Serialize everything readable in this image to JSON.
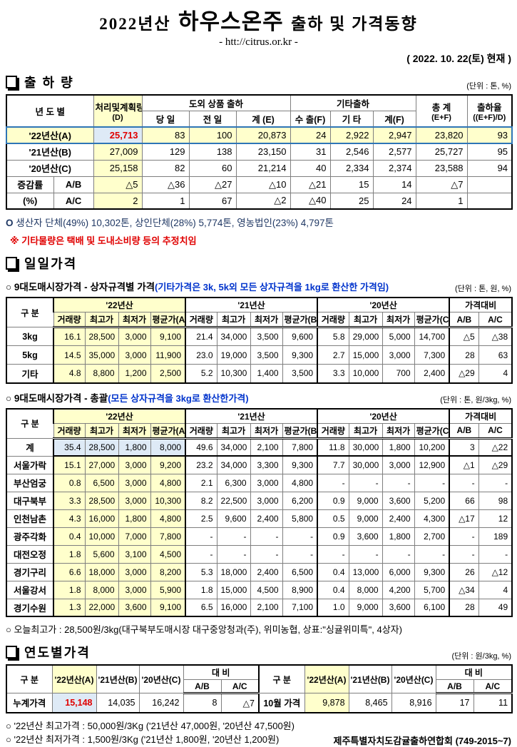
{
  "colors": {
    "accent_yellow": "#FFFFCC",
    "accent_blue": "#DEEAF6",
    "highlight_red": "#E00000",
    "note_blue": "#0033CC",
    "note_navy": "#203864",
    "row_outline_blue": "#2E75B6"
  },
  "header": {
    "title_prefix": "2022년산",
    "title_main": "하우스온주",
    "title_suffix": "출하 및 가격동향",
    "subtitle": "- htt://citrus.or.kr -",
    "as_of": "( 2022. 10. 22(토) 현재 )"
  },
  "shipment": {
    "section_title": "출 하 량",
    "unit": "(단위 : 톤, %)",
    "head": {
      "year": "년 도 별",
      "plan1": "처리및계획량",
      "plan2": "(D)",
      "out_group": "도외 상품 출하",
      "today": "당 일",
      "prev": "전 일",
      "sum_e": "계 (E)",
      "etc_group": "기타출하",
      "export": "수 출(F)",
      "etc": "기 타",
      "sum_f": "계(F)",
      "total1": "총  계",
      "total2": "(E+F)",
      "rate1": "출하율",
      "rate2": "((E+F)/D)"
    },
    "rows": [
      {
        "cls": "yr row-a",
        "cells": [
          {
            "t": "'22년산(A)",
            "cs": 2
          },
          "25,713",
          "83",
          "100",
          "20,873",
          "24",
          "2,922",
          "2,947",
          "23,820",
          "93"
        ]
      },
      {
        "cls": "yr",
        "cells": [
          {
            "t": "'21년산(B)",
            "cs": 2
          },
          "27,009",
          "129",
          "138",
          "23,150",
          "31",
          "2,546",
          "2,577",
          "25,727",
          "95"
        ]
      },
      {
        "cls": "yr",
        "cells": [
          {
            "t": "'20년산(C)",
            "cs": 2
          },
          "25,158",
          "82",
          "60",
          "21,214",
          "40",
          "2,334",
          "2,374",
          "23,588",
          "94"
        ]
      },
      {
        "cls": "delta",
        "cells": [
          "증감률",
          "A/B",
          "△5",
          "△36",
          "△27",
          "△10",
          "△21",
          "15",
          "14",
          "△7",
          ""
        ]
      },
      {
        "cls": "delta",
        "cells": [
          "(%)",
          "A/C",
          "2",
          "1",
          "67",
          "△2",
          "△40",
          "25",
          "24",
          "1",
          ""
        ]
      }
    ],
    "producer_note_bullet": "O",
    "producer_note": "생산자 단체(49%)  10,302톤,    상인단체(28%)  5,774톤,    영농법인(23%)   4,797톤",
    "etc_note": "※ 기타물량은 택배 및 도내소비량 등의 추정치임"
  },
  "daily": {
    "section_title": "일일가격",
    "gubun": "구  분",
    "groups": [
      "'22년산",
      "'21년산",
      "'20년산"
    ],
    "cmp": "가격대비",
    "sub": [
      "거래량",
      "최고가",
      "최저가",
      "평균가(A)",
      "거래량",
      "최고가",
      "최저가",
      "평균가(B)",
      "거래량",
      "최고가",
      "최저가",
      "평균가(C)",
      "A/B",
      "A/C"
    ],
    "box": {
      "heading": "○ 9대도매시장가격 - 상자규격별 가격",
      "note": "(기타가격은 3k, 5k외 모든 상자규격을 1kg로 환산한 가격임)",
      "unit": "(단위 : 톤,  원, %)",
      "rows": [
        {
          "cells": [
            "3kg",
            "16.1",
            "28,500",
            "3,000",
            "9,100",
            "21.4",
            "34,000",
            "3,500",
            "9,600",
            "5.8",
            "29,000",
            "5,000",
            "14,700",
            "△5",
            "△38"
          ]
        },
        {
          "cells": [
            "5kg",
            "14.5",
            "35,000",
            "3,000",
            "11,900",
            "23.0",
            "19,000",
            "3,500",
            "9,300",
            "2.7",
            "15,000",
            "3,000",
            "7,300",
            "28",
            "63"
          ]
        },
        {
          "cells": [
            "기타",
            "4.8",
            "8,800",
            "1,200",
            "2,500",
            "5.2",
            "10,300",
            "1,400",
            "3,500",
            "3.3",
            "10,000",
            "700",
            "2,400",
            "△29",
            "4"
          ]
        }
      ]
    },
    "sum": {
      "heading": "○ 9대도매시장가격 - 총괄",
      "note": "(모든 상자규격을 3kg로 환산한가격)",
      "unit": "(단위 : 톤, 원/3kg, %)",
      "rows": [
        {
          "cls": "total",
          "cells": [
            "계",
            "35.4",
            "28,500",
            "1,800",
            "8,000",
            "49.6",
            "34,000",
            "2,100",
            "7,800",
            "11.8",
            "30,000",
            "1,800",
            "10,200",
            "3",
            "△22"
          ]
        },
        {
          "cells": [
            "서울가락",
            "15.1",
            "27,000",
            "3,000",
            "9,200",
            "23.2",
            "34,000",
            "3,300",
            "9,300",
            "7.7",
            "30,000",
            "3,000",
            "12,900",
            "△1",
            "△29"
          ]
        },
        {
          "cells": [
            "부산엄궁",
            "0.8",
            "6,500",
            "3,000",
            "4,800",
            "2.1",
            "6,300",
            "3,000",
            "4,800",
            "-",
            "-",
            "-",
            "-",
            "-",
            "-"
          ]
        },
        {
          "cells": [
            "대구북부",
            "3.3",
            "28,500",
            "3,000",
            "10,300",
            "8.2",
            "22,500",
            "3,000",
            "6,200",
            "0.9",
            "9,000",
            "3,600",
            "5,200",
            "66",
            "98"
          ]
        },
        {
          "cells": [
            "인천남촌",
            "4.3",
            "16,000",
            "1,800",
            "4,800",
            "2.5",
            "9,600",
            "2,400",
            "5,800",
            "0.5",
            "9,000",
            "2,400",
            "4,300",
            "△17",
            "12"
          ]
        },
        {
          "cells": [
            "광주각화",
            "0.4",
            "10,000",
            "7,000",
            "7,800",
            "-",
            "-",
            "-",
            "-",
            "0.9",
            "3,600",
            "1,800",
            "2,700",
            "-",
            "189"
          ]
        },
        {
          "cells": [
            "대전오정",
            "1.8",
            "5,600",
            "3,100",
            "4,500",
            "-",
            "-",
            "-",
            "-",
            "-",
            "-",
            "-",
            "-",
            "-",
            "-"
          ]
        },
        {
          "cells": [
            "경기구리",
            "6.6",
            "18,000",
            "3,000",
            "8,200",
            "5.3",
            "18,000",
            "2,400",
            "6,500",
            "0.4",
            "13,000",
            "6,000",
            "9,300",
            "26",
            "△12"
          ]
        },
        {
          "cells": [
            "서울강서",
            "1.8",
            "8,000",
            "3,000",
            "5,900",
            "1.8",
            "15,000",
            "4,500",
            "8,900",
            "0.4",
            "8,000",
            "4,200",
            "5,700",
            "△34",
            "4"
          ]
        },
        {
          "cells": [
            "경기수원",
            "1.3",
            "22,000",
            "3,600",
            "9,100",
            "6.5",
            "16,000",
            "2,100",
            "7,100",
            "1.0",
            "9,000",
            "3,600",
            "6,100",
            "28",
            "49"
          ]
        }
      ]
    },
    "top_note": "○ 오늘최고가 : 28,500원/3kg(대구북부도매시장   대구중앙청과(주),    위미농협,    상표:\"싱귤위미특\",   4상자)"
  },
  "yearly": {
    "section_title": "연도별가격",
    "unit": "(단위 : 원/3kg, %)",
    "gubun": "구  분",
    "a": "'22년산(A)",
    "b": "'21년산(B)",
    "c": "'20년산(C)",
    "cmp": "대   비",
    "ab": "A/B",
    "ac": "A/C",
    "rows": [
      {
        "cells": [
          "누계가격",
          {
            "t": "15,148",
            "cls": "blu red"
          },
          "14,035",
          "16,242",
          "8",
          "△7",
          {
            "t": "10월 가격",
            "cls": "lbl"
          },
          {
            "t": "9,878",
            "cls": "yel"
          },
          "8,465",
          "8,916",
          "17",
          "11"
        ]
      }
    ]
  },
  "footer": {
    "high": "○ '22년산 최고가격 : 50,000원/3Kg ('21년산 47,000원, '20년산 47,500원)",
    "low": "○ '22년산 최저가격 :   1,500원/3Kg ('21년산   1,800원, '20년산  1,200원)",
    "org": "제주특별자치도감귤출하연합회 (749-2015~7)"
  }
}
